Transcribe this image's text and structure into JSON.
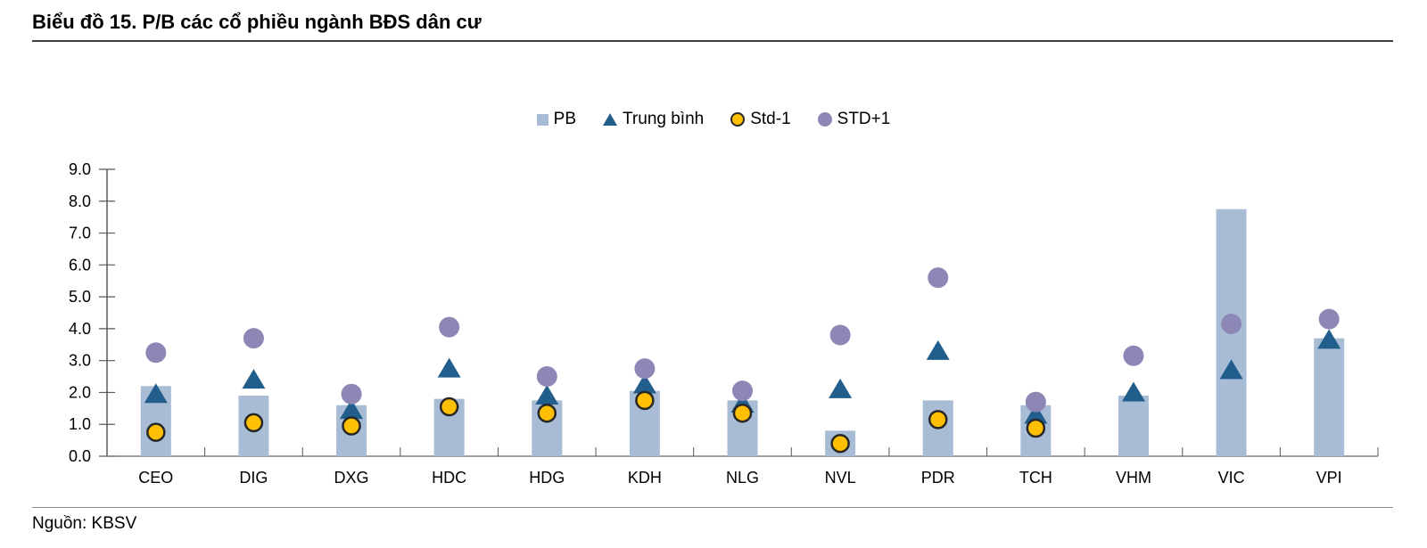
{
  "footer": {
    "source": "Nguồn: KBSV"
  },
  "colors": {
    "bar": "#a8bcd5",
    "mean_triangle": "#215e8c",
    "std_minus1_fill": "#ffc003",
    "std_minus1_outline": "#272727",
    "std_plus1": "#8d87b6",
    "axis_line": "#595959",
    "baseline": "#808080",
    "title_rule": "#3f3f3f"
  },
  "chart_data": {
    "type": "bar",
    "title": "Biểu đồ 15. P/B các cổ phiều ngành BĐS dân cư",
    "xlabel": "",
    "ylabel": "",
    "grid": false,
    "legend_position": "top-center",
    "ylim": [
      0,
      9
    ],
    "ytick_step": 1,
    "yticks": [
      "0.0",
      "1.0",
      "2.0",
      "3.0",
      "4.0",
      "5.0",
      "6.0",
      "7.0",
      "8.0",
      "9.0"
    ],
    "categories": [
      "CEO",
      "DIG",
      "DXG",
      "HDC",
      "HDG",
      "KDH",
      "NLG",
      "NVL",
      "PDR",
      "TCH",
      "VHM",
      "VIC",
      "VPI"
    ],
    "series": [
      {
        "name": "PB",
        "plot": "bar",
        "icon": "pb-square-icon",
        "color": "#a8bcd5",
        "values": [
          2.2,
          1.9,
          1.6,
          1.8,
          1.75,
          2.05,
          1.75,
          0.8,
          1.75,
          1.6,
          1.9,
          7.75,
          3.7
        ]
      },
      {
        "name": "Trung bình",
        "plot": "triangle",
        "icon": "trung-binh-triangle-icon",
        "color": "#215e8c",
        "values": [
          1.95,
          2.4,
          1.45,
          2.75,
          1.9,
          2.25,
          1.65,
          2.1,
          3.3,
          1.3,
          2.0,
          2.7,
          3.65
        ]
      },
      {
        "name": "Std-1",
        "plot": "circle",
        "icon": "std-minus-1-circle-icon",
        "color": "#ffc003",
        "outline": "#272727",
        "values": [
          0.75,
          1.05,
          0.95,
          1.55,
          1.35,
          1.75,
          1.35,
          0.4,
          1.15,
          0.88,
          null,
          null,
          null
        ]
      },
      {
        "name": "STD+1",
        "plot": "circle",
        "icon": "std-plus-1-circle-icon",
        "color": "#8d87b6",
        "values": [
          3.25,
          3.7,
          1.95,
          4.05,
          2.5,
          2.75,
          2.05,
          3.8,
          5.6,
          1.7,
          3.15,
          4.15,
          4.3
        ]
      }
    ]
  }
}
